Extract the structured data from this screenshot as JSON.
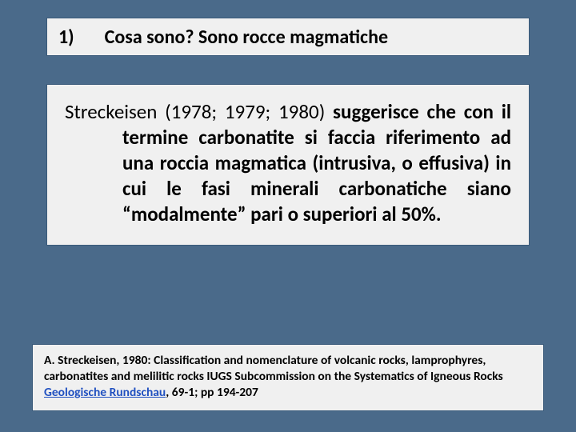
{
  "colors": {
    "background": "#4a6a8a",
    "box_bg": "#f0f0f0",
    "box_border": "#3a5a7a",
    "text": "#000000",
    "link": "#2050c0"
  },
  "heading": {
    "number": "1)",
    "text": "Cosa sono? Sono rocce magmatiche"
  },
  "body": {
    "author_years": "Streckeisen (1978; 1979; 1980)",
    "rest": " suggerisce che con il termine carbonatite si faccia riferimento ad una roccia magmatica (intrusiva, o effusiva) in cui le fasi minerali carbonatiche siano “modalmente” pari o superiori al 50%."
  },
  "reference": {
    "prefix": "A. Streckeisen, 1980: Classification and nomenclature of volcanic rocks, lamprophyres, carbonatites and melilitic rocks IUGS Subcommission on the Systematics of Igneous Rocks ",
    "journal": "Geologische Rundschau",
    "suffix": ", 69-1; pp 194-207"
  }
}
